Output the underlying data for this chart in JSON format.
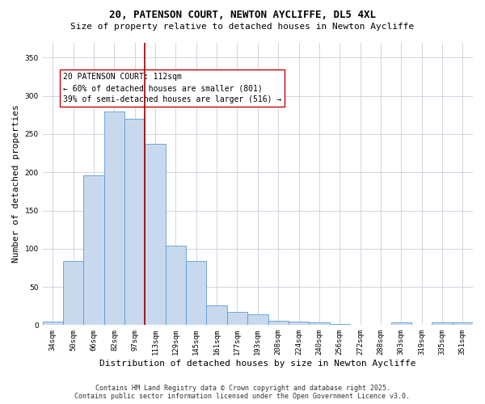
{
  "title_line1": "20, PATENSON COURT, NEWTON AYCLIFFE, DL5 4XL",
  "title_line2": "Size of property relative to detached houses in Newton Aycliffe",
  "xlabel": "Distribution of detached houses by size in Newton Aycliffe",
  "ylabel": "Number of detached properties",
  "categories": [
    "34sqm",
    "50sqm",
    "66sqm",
    "82sqm",
    "97sqm",
    "113sqm",
    "129sqm",
    "145sqm",
    "161sqm",
    "177sqm",
    "193sqm",
    "208sqm",
    "224sqm",
    "240sqm",
    "256sqm",
    "272sqm",
    "288sqm",
    "303sqm",
    "319sqm",
    "335sqm",
    "351sqm"
  ],
  "values": [
    5,
    84,
    196,
    280,
    270,
    237,
    104,
    84,
    26,
    17,
    14,
    6,
    5,
    3,
    1,
    0,
    0,
    3,
    0,
    3,
    3
  ],
  "bar_color": "#c9d9ed",
  "bar_edge_color": "#5b9bd5",
  "red_line_index": 5,
  "annotation_text_l1": "20 PATENSON COURT: 112sqm",
  "annotation_text_l2": "← 60% of detached houses are smaller (801)",
  "annotation_text_l3": "39% of semi-detached houses are larger (516) →",
  "annotation_box_color": "#ffffff",
  "annotation_box_edge": "#cc0000",
  "ylim": [
    0,
    370
  ],
  "yticks": [
    0,
    50,
    100,
    150,
    200,
    250,
    300,
    350
  ],
  "footer_line1": "Contains HM Land Registry data © Crown copyright and database right 2025.",
  "footer_line2": "Contains public sector information licensed under the Open Government Licence v3.0.",
  "background_color": "#ffffff",
  "grid_color": "#c8d0dc",
  "title_fontsize": 9,
  "subtitle_fontsize": 8,
  "ylabel_fontsize": 8,
  "xlabel_fontsize": 8,
  "tick_fontsize": 6.5,
  "annot_fontsize": 7,
  "footer_fontsize": 6
}
